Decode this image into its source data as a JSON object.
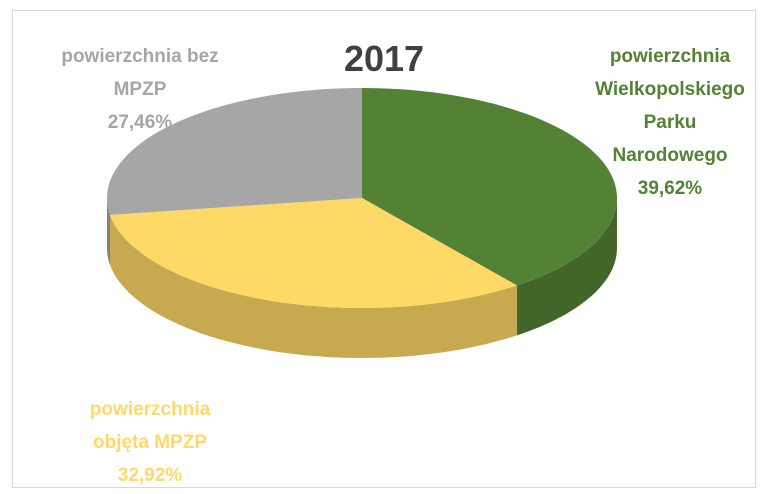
{
  "chart_data": {
    "type": "pie3d",
    "title": "2017",
    "categories": [
      "powierzchnia Wielkopolskiego Parku Narodowego",
      "powierzchnia objęta MPZP",
      "powierzchnia bez MPZP"
    ],
    "values": [
      39.62,
      32.92,
      27.46
    ],
    "value_labels": [
      "39,62%",
      "32,92%",
      "27,46%"
    ],
    "colors": [
      "#548235",
      "#ffd966",
      "#a6a6a6"
    ]
  }
}
